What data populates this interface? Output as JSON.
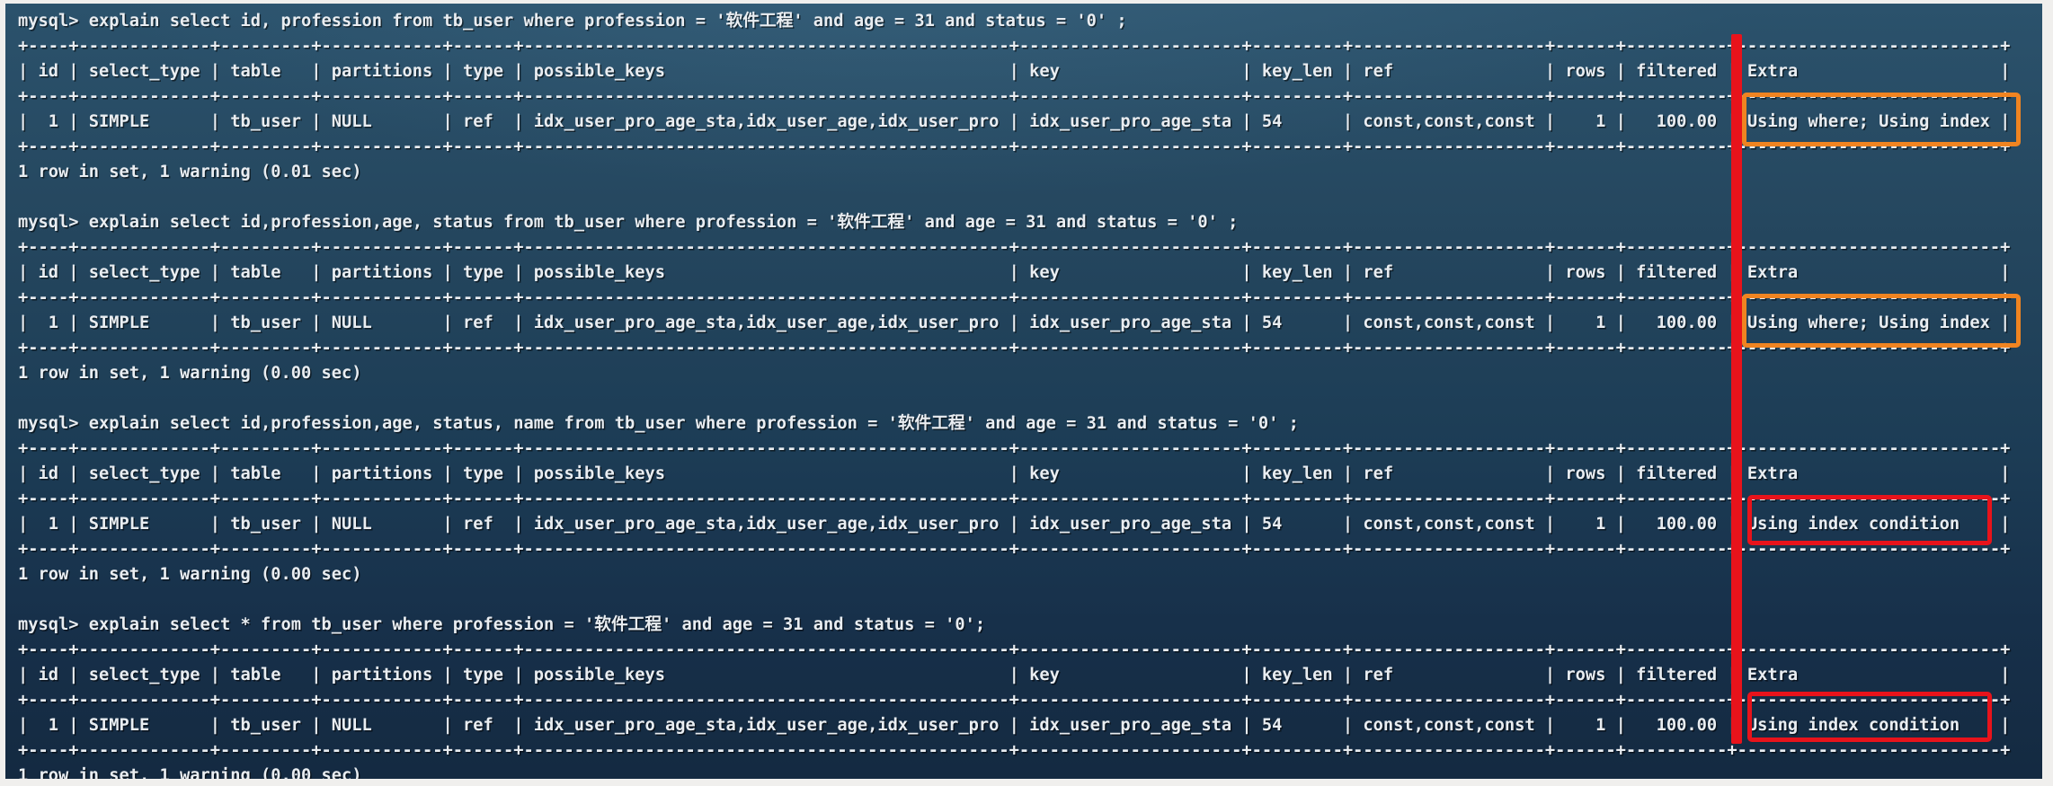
{
  "app": {
    "title": "mysql-terminal-explain-session",
    "prompt": "mysql>"
  },
  "colors": {
    "background_top": "#2b526c",
    "background_bottom": "#142a41",
    "text": "#e9edf1",
    "marker_red": "#e8131b",
    "marker_orange": "#f08421",
    "frame": "#f0efed"
  },
  "explain_table": {
    "columns": [
      "id",
      "select_type",
      "table",
      "partitions",
      "type",
      "possible_keys",
      "key",
      "key_len",
      "ref",
      "rows",
      "filtered",
      "Extra"
    ],
    "common_row": {
      "id": "1",
      "select_type": "SIMPLE",
      "table": "tb_user",
      "partitions": "NULL",
      "type": "ref",
      "possible_keys": "idx_user_pro_age_sta,idx_user_age,idx_user_pro",
      "key": "idx_user_pro_age_sta",
      "key_len": "54",
      "ref": "const,const,const",
      "rows": "1",
      "filtered": "100.00"
    },
    "extra_values": [
      "Using where; Using index",
      "Using where; Using index",
      "Using index condition",
      "Using index condition"
    ]
  },
  "annotations": {
    "red_line": "vertical red marker separating filtered column from Extra column",
    "boxes": [
      {
        "block": 1,
        "color": "orange",
        "text": "Using where; Using index"
      },
      {
        "block": 2,
        "color": "orange",
        "text": "Using where; Using index"
      },
      {
        "block": 3,
        "color": "red",
        "text": "Using index condition"
      },
      {
        "block": 4,
        "color": "red",
        "text": "Using index condition"
      }
    ]
  },
  "blocks": [
    {
      "command": "mysql> explain select id, profession from tb_user where profession = '软件工程' and age = 31 and status = '0' ;",
      "extra": "Using where; Using index",
      "status": "1 row in set, 1 warning (0.01 sec)",
      "lines": [
        "mysql> explain select id, profession from tb_user where profession = '软件工程' and age = 31 and status = '0' ;",
        "+----+-------------+---------+------------+------+------------------------------------------------+----------------------+---------+-------------------+------+----------+--------------------------+",
        "| id | select_type | table   | partitions | type | possible_keys                                  | key                  | key_len | ref               | rows | filtered | Extra                    |",
        "+----+-------------+---------+------------+------+------------------------------------------------+----------------------+---------+-------------------+------+----------+--------------------------+",
        "|  1 | SIMPLE      | tb_user | NULL       | ref  | idx_user_pro_age_sta,idx_user_age,idx_user_pro | idx_user_pro_age_sta | 54      | const,const,const |    1 |   100.00 | Using where; Using index |",
        "+----+-------------+---------+------------+------+------------------------------------------------+----------------------+---------+-------------------+------+----------+--------------------------+",
        "1 row in set, 1 warning (0.01 sec)"
      ]
    },
    {
      "command": "mysql> explain select id,profession,age, status from tb_user where profession = '软件工程' and age = 31 and status = '0' ;",
      "extra": "Using where; Using index",
      "status": "1 row in set, 1 warning (0.00 sec)",
      "lines": [
        "mysql> explain select id,profession,age, status from tb_user where profession = '软件工程' and age = 31 and status = '0' ;",
        "+----+-------------+---------+------------+------+------------------------------------------------+----------------------+---------+-------------------+------+----------+--------------------------+",
        "| id | select_type | table   | partitions | type | possible_keys                                  | key                  | key_len | ref               | rows | filtered | Extra                    |",
        "+----+-------------+---------+------------+------+------------------------------------------------+----------------------+---------+-------------------+------+----------+--------------------------+",
        "|  1 | SIMPLE      | tb_user | NULL       | ref  | idx_user_pro_age_sta,idx_user_age,idx_user_pro | idx_user_pro_age_sta | 54      | const,const,const |    1 |   100.00 | Using where; Using index |",
        "+----+-------------+---------+------------+------+------------------------------------------------+----------------------+---------+-------------------+------+----------+--------------------------+",
        "1 row in set, 1 warning (0.00 sec)"
      ]
    },
    {
      "command": "mysql> explain select id,profession,age, status, name from tb_user where profession = '软件工程' and age = 31 and status = '0' ;",
      "extra": "Using index condition",
      "status": "1 row in set, 1 warning (0.00 sec)",
      "lines": [
        "mysql> explain select id,profession,age, status, name from tb_user where profession = '软件工程' and age = 31 and status = '0' ;",
        "+----+-------------+---------+------------+------+------------------------------------------------+----------------------+---------+-------------------+------+----------+--------------------------+",
        "| id | select_type | table   | partitions | type | possible_keys                                  | key                  | key_len | ref               | rows | filtered | Extra                    |",
        "+----+-------------+---------+------------+------+------------------------------------------------+----------------------+---------+-------------------+------+----------+--------------------------+",
        "|  1 | SIMPLE      | tb_user | NULL       | ref  | idx_user_pro_age_sta,idx_user_age,idx_user_pro | idx_user_pro_age_sta | 54      | const,const,const |    1 |   100.00 | Using index condition    |",
        "+----+-------------+---------+------------+------+------------------------------------------------+----------------------+---------+-------------------+------+----------+--------------------------+",
        "1 row in set, 1 warning (0.00 sec)"
      ]
    },
    {
      "command": "mysql> explain select * from tb_user where profession = '软件工程' and age = 31 and status = '0';",
      "extra": "Using index condition",
      "status": "1 row in set, 1 warning (0.00 sec)",
      "lines": [
        "mysql> explain select * from tb_user where profession = '软件工程' and age = 31 and status = '0';",
        "+----+-------------+---------+------------+------+------------------------------------------------+----------------------+---------+-------------------+------+----------+--------------------------+",
        "| id | select_type | table   | partitions | type | possible_keys                                  | key                  | key_len | ref               | rows | filtered | Extra                    |",
        "+----+-------------+---------+------------+------+------------------------------------------------+----------------------+---------+-------------------+------+----------+--------------------------+",
        "|  1 | SIMPLE      | tb_user | NULL       | ref  | idx_user_pro_age_sta,idx_user_age,idx_user_pro | idx_user_pro_age_sta | 54      | const,const,const |    1 |   100.00 | Using index condition    |",
        "+----+-------------+---------+------------+------+------------------------------------------------+----------------------+---------+-------------------+------+----------+--------------------------+",
        "1 row in set, 1 warning (0.00 sec)"
      ]
    }
  ]
}
